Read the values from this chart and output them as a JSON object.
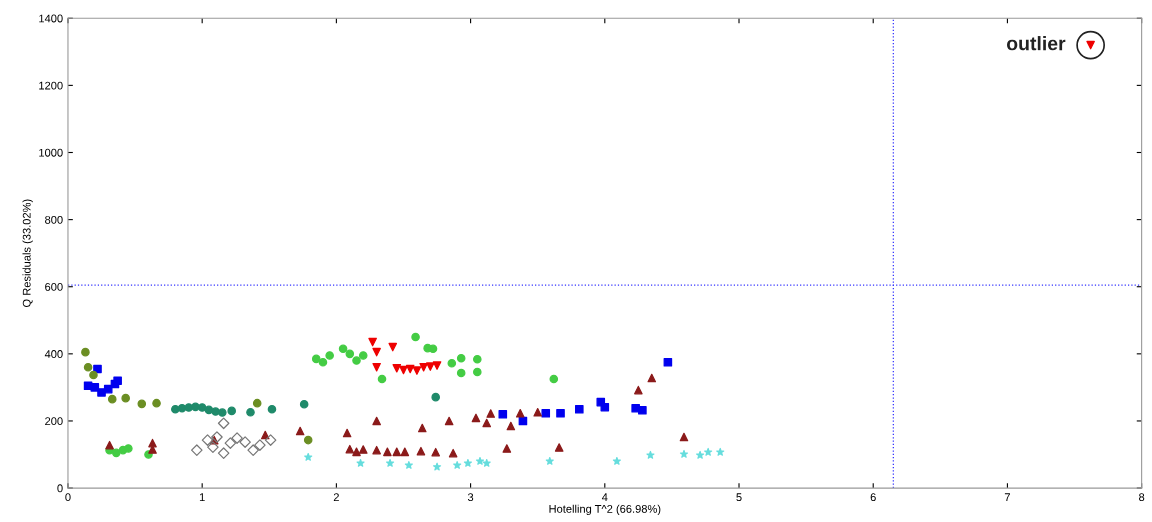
{
  "chart_data": {
    "type": "scatter",
    "xlabel": "Hotelling T^2 (66.98%)",
    "ylabel": "Q Residuals (33.02%)",
    "xlim": [
      0,
      8
    ],
    "ylim": [
      0,
      1400
    ],
    "xticks": [
      0,
      1,
      2,
      3,
      4,
      5,
      6,
      7,
      8
    ],
    "yticks": [
      0,
      200,
      400,
      600,
      800,
      1000,
      1200,
      1400
    ],
    "grid": false,
    "legend": false,
    "ref_lines": [
      {
        "axis": "x",
        "value": 6.15,
        "color": "#3333ff",
        "line_style": "dotted"
      },
      {
        "axis": "y",
        "value": 605,
        "color": "#3333ff",
        "line_style": "dotted"
      }
    ],
    "annotations": [
      {
        "text": "outlier",
        "x": 7.62,
        "y": 1320
      }
    ],
    "series": [
      {
        "color": "#0000ee",
        "marker": "square",
        "x": [
          0.15,
          0.2,
          0.22,
          0.25,
          0.3,
          0.35,
          0.37,
          3.24,
          3.39,
          3.56,
          3.67,
          3.81,
          3.97,
          4.0,
          4.23,
          4.28,
          4.47
        ],
        "values": [
          305,
          300,
          355,
          285,
          295,
          310,
          320,
          220,
          200,
          223,
          223,
          235,
          256,
          241,
          238,
          232,
          375
        ]
      },
      {
        "color": "#ee0000",
        "marker": "triangle_down",
        "x": [
          2.27,
          2.3,
          2.3,
          2.42,
          2.45,
          2.5,
          2.55,
          2.6,
          2.65,
          2.7,
          2.75,
          7.62
        ],
        "values": [
          435,
          405,
          360,
          420,
          357,
          352,
          355,
          350,
          360,
          362,
          365,
          1320
        ]
      },
      {
        "color": "#44cc44",
        "marker": "circle",
        "x": [
          1.85,
          1.9,
          1.95,
          2.05,
          2.1,
          2.15,
          2.2,
          2.34,
          2.59,
          2.68,
          2.72,
          2.86,
          2.93,
          2.93,
          3.05,
          3.05,
          3.62,
          0.31,
          0.36,
          0.41,
          0.45,
          0.6
        ],
        "values": [
          385,
          375,
          395,
          415,
          400,
          380,
          395,
          325,
          450,
          417,
          415,
          372,
          387,
          343,
          384,
          346,
          325,
          113,
          105,
          113,
          118,
          100
        ]
      },
      {
        "color": "#6b8e23",
        "marker": "circle",
        "x": [
          0.13,
          0.15,
          0.19,
          0.33,
          0.43,
          0.55,
          0.66,
          1.41,
          1.79
        ],
        "values": [
          405,
          360,
          337,
          265,
          268,
          251,
          253,
          253,
          143
        ]
      },
      {
        "color": "#1f8a6a",
        "marker": "circle",
        "x": [
          0.8,
          0.85,
          0.9,
          0.95,
          1.0,
          1.05,
          1.1,
          1.15,
          1.22,
          1.36,
          1.52,
          1.76,
          2.74
        ],
        "values": [
          235,
          238,
          240,
          242,
          240,
          233,
          228,
          225,
          230,
          226,
          235,
          250,
          271
        ]
      },
      {
        "color": "#8b1a1a",
        "marker": "triangle",
        "x": [
          0.31,
          0.63,
          0.63,
          1.09,
          1.47,
          1.73,
          2.08,
          2.1,
          2.15,
          2.2,
          2.3,
          2.3,
          2.38,
          2.45,
          2.51,
          2.64,
          2.63,
          2.74,
          2.84,
          2.87,
          3.04,
          3.12,
          3.15,
          3.27,
          3.3,
          3.37,
          3.5,
          3.66,
          4.25,
          4.35,
          4.59
        ],
        "values": [
          128,
          134,
          115,
          143,
          158,
          170,
          164,
          116,
          108,
          115,
          200,
          113,
          108,
          108,
          108,
          179,
          110,
          107,
          200,
          104,
          209,
          194,
          222,
          118,
          185,
          223,
          226,
          121,
          292,
          328,
          152
        ]
      },
      {
        "color": "#777777",
        "marker": "diamond",
        "x": [
          0.96,
          1.04,
          1.08,
          1.11,
          1.16,
          1.16,
          1.21,
          1.26,
          1.32,
          1.38,
          1.43,
          1.51
        ],
        "values": [
          113,
          143,
          122,
          152,
          193,
          104,
          134,
          149,
          137,
          113,
          128,
          143
        ]
      },
      {
        "color": "#66dddd",
        "marker": "star",
        "x": [
          1.79,
          2.18,
          2.4,
          2.54,
          2.75,
          2.9,
          2.98,
          3.07,
          3.12,
          3.59,
          4.09,
          4.34,
          4.59,
          4.71,
          4.77,
          4.86
        ],
        "values": [
          92,
          74,
          74,
          68,
          63,
          68,
          74,
          80,
          74,
          80,
          80,
          98,
          101,
          98,
          107,
          107
        ]
      }
    ]
  }
}
